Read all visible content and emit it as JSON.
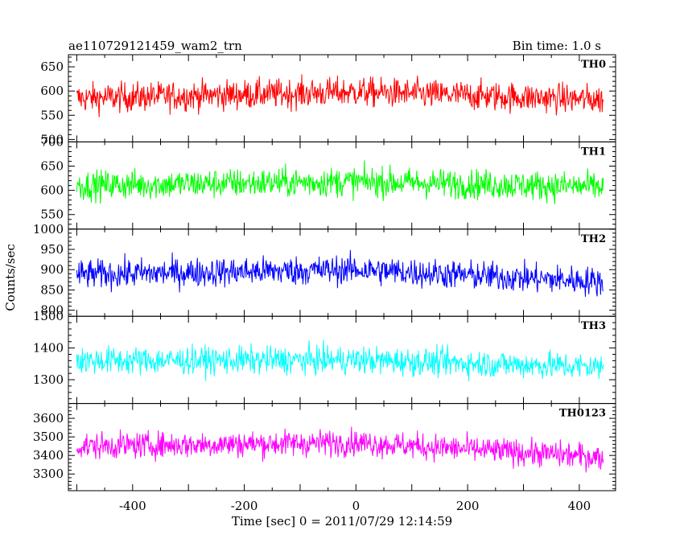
{
  "chart_data": {
    "type": "line",
    "title": "ae110729121459_wam2_trn",
    "subtitle": "Bin time: 1.0 s",
    "xlabel": "Time [sec] 0 = 2011/07/29 12:14:59",
    "ylabel": "Counts/sec",
    "xlim": [
      -515,
      465
    ],
    "x_ticks": [
      -400,
      -200,
      0,
      200,
      400
    ],
    "x_range": [
      -500,
      443
    ],
    "bin_time": 1.0,
    "grid": false,
    "panels": [
      {
        "name": "TH0",
        "color": "#ff0000",
        "ylim": [
          495,
          675
        ],
        "yticks": [
          500,
          550,
          600,
          650
        ],
        "mean": 585,
        "trend": [
          {
            "t": -500,
            "v": 585
          },
          {
            "t": 0,
            "v": 598
          },
          {
            "t": 443,
            "v": 582
          }
        ],
        "amplitude": 28
      },
      {
        "name": "TH1",
        "color": "#00ff00",
        "ylim": [
          520,
          700
        ],
        "yticks": [
          550,
          600,
          650,
          700
        ],
        "mean": 610,
        "trend": [
          {
            "t": -500,
            "v": 610
          },
          {
            "t": 0,
            "v": 618
          },
          {
            "t": 443,
            "v": 607
          }
        ],
        "amplitude": 28
      },
      {
        "name": "TH2",
        "color": "#0000ff",
        "ylim": [
          785,
          1000
        ],
        "yticks": [
          800,
          850,
          900,
          950,
          1000
        ],
        "mean": 888,
        "trend": [
          {
            "t": -500,
            "v": 888
          },
          {
            "t": 0,
            "v": 900
          },
          {
            "t": 443,
            "v": 870
          }
        ],
        "amplitude": 33
      },
      {
        "name": "TH3",
        "color": "#00ffff",
        "ylim": [
          1225,
          1500
        ],
        "yticks": [
          1300,
          1400,
          1500
        ],
        "mean": 1360,
        "trend": [
          {
            "t": -500,
            "v": 1360
          },
          {
            "t": 0,
            "v": 1362
          },
          {
            "t": 443,
            "v": 1340
          }
        ],
        "amplitude": 40
      },
      {
        "name": "TH0123",
        "color": "#ff00ff",
        "ylim": [
          3210,
          3680
        ],
        "yticks": [
          3300,
          3400,
          3500,
          3600
        ],
        "mean": 3450,
        "trend": [
          {
            "t": -500,
            "v": 3450
          },
          {
            "t": 0,
            "v": 3470
          },
          {
            "t": 443,
            "v": 3390
          }
        ],
        "amplitude": 65
      }
    ]
  }
}
